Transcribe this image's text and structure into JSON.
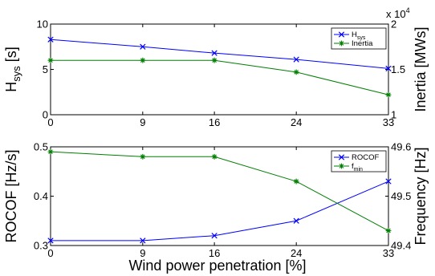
{
  "chart_data": [
    {
      "type": "line",
      "x": [
        0,
        9,
        16,
        24,
        33
      ],
      "xlim": [
        0,
        33
      ],
      "xticks": [
        "0",
        "9",
        "16",
        "24",
        "33"
      ],
      "ylabel_left": "H",
      "ylabel_left_sub": "sys",
      "ylabel_left_unit": " [s]",
      "ylim_left": [
        0,
        10
      ],
      "yticks_left": [
        "0",
        "5",
        "10"
      ],
      "ylabel_right": "Inertia [MWs]",
      "ylim_right": [
        1,
        2
      ],
      "yticks_right": [
        "1",
        "1.5",
        "2"
      ],
      "right_axis_multiplier": "x 10",
      "right_axis_multiplier_exp": "4",
      "series": [
        {
          "name": "H",
          "name_sub": "sys",
          "axis": "left",
          "color": "#0000ff",
          "marker": "x",
          "values": [
            8.3,
            7.5,
            6.8,
            6.1,
            5.1
          ]
        },
        {
          "name": "Inertia",
          "axis": "right",
          "color": "#007f00",
          "marker": "*",
          "values": [
            16000,
            16000,
            16000,
            14700,
            12200
          ]
        }
      ],
      "legend": "top-right"
    },
    {
      "type": "line",
      "x": [
        0,
        9,
        16,
        24,
        33
      ],
      "xlim": [
        0,
        33
      ],
      "xticks": [
        "0",
        "9",
        "16",
        "24",
        "33"
      ],
      "xlabel": "Wind power penetration [%]",
      "ylabel_left": "ROCOF [Hz/s]",
      "ylim_left": [
        0.3,
        0.5
      ],
      "yticks_left": [
        "0.3",
        "0.4",
        "0.5"
      ],
      "ylabel_right": "Frequency [Hz]",
      "ylim_right": [
        49.4,
        49.6
      ],
      "yticks_right": [
        "49.4",
        "49.5",
        "49.6"
      ],
      "series": [
        {
          "name": "ROCOF",
          "axis": "left",
          "color": "#0000ff",
          "marker": "x",
          "values": [
            0.31,
            0.31,
            0.32,
            0.35,
            0.43
          ]
        },
        {
          "name": "f",
          "name_sub": "min",
          "axis": "right",
          "color": "#007f00",
          "marker": "*",
          "values": [
            49.59,
            49.58,
            49.58,
            49.53,
            49.43
          ]
        }
      ],
      "legend": "top-right"
    }
  ]
}
